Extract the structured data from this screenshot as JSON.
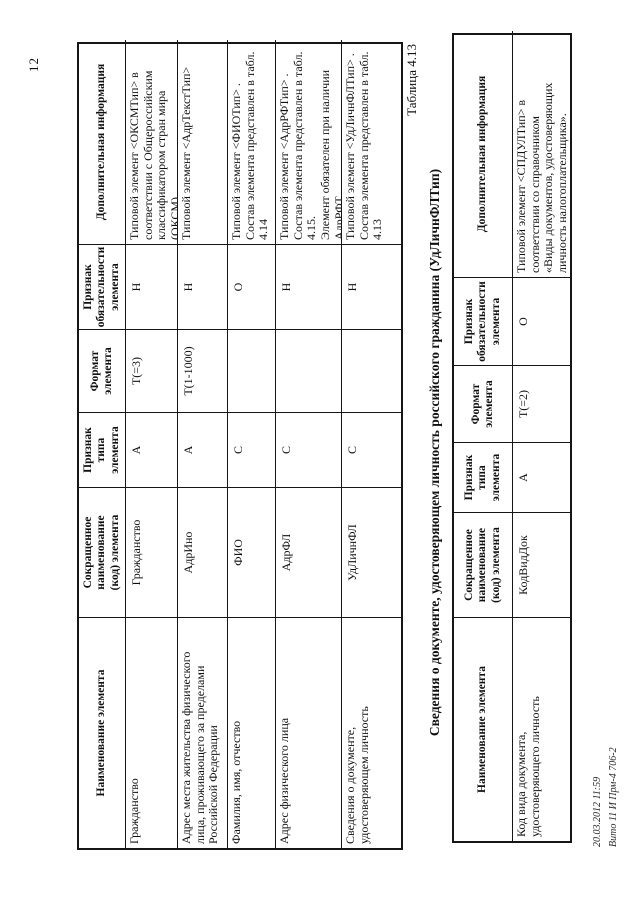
{
  "page": {
    "number": "12",
    "caption": "Таблица 4.13",
    "table2_title": "Сведения о документе, удостоверяющем личность российского гражданина (УдЛичнФЛТип)",
    "footer": {
      "line1": "20.03.2012 11:59",
      "line2": "Вито 11 И Прм-4 706-2"
    }
  },
  "columns": {
    "c0": "Наименование элемента",
    "c1": "Сокращенное\nнаименование\n(код) элемента",
    "c2": "Признак\nтипа\nэлемента",
    "c3": "Формат\nэлемента",
    "c4": "Признак\nобязательности\nэлемента",
    "c5": "Дополнительная информация"
  },
  "table1": {
    "rows": [
      {
        "name": "Гражданство",
        "code": "Гражданство",
        "type": "А",
        "format": "Т(=3)",
        "required": "Н",
        "info": "Типовой элемент <ОКСМТип> в\nсоответствии с Общероссийским\nклассификатором стран мира\n(ОКСМ)"
      },
      {
        "name": "Адрес места жительства физического\nлица, проживающего за пределами\nРоссийской Федерации",
        "code": "АдрИно",
        "type": "А",
        "format": "Т(1-1000)",
        "required": "Н",
        "info": "Типовой элемент <АдрТекстТип>"
      },
      {
        "name": "Фамилия, имя, отчество",
        "code": "ФИО",
        "type": "С",
        "format": "",
        "required": "О",
        "info": "Типовой элемент <ФИОТип> .\nСостав элемента представлен в табл.\n4.14"
      },
      {
        "name": "Адрес физического лица",
        "code": "АдрФЛ",
        "type": "С",
        "format": "",
        "required": "Н",
        "info": "Типовой элемент <АдрРФТип> .\nСостав элемента представлен в табл.\n4.15.\nЭлемент обязателен при наличии\nАдрРФТ"
      },
      {
        "name": "Сведения о документе,\nудостоверяющем личность",
        "code": "УдЛичнФЛ",
        "type": "С",
        "format": "",
        "required": "Н",
        "info": "Типовой элемент <УдЛичнФЛТип> .\nСостав элемента представлен в табл.\n4.13"
      }
    ]
  },
  "table2": {
    "rows": [
      {
        "name": "Код вида документа,\nудостоверяющего личность",
        "code": "КодВидДок",
        "type": "А",
        "format": "Т(=2)",
        "required": "О",
        "info": "Типовой элемент <СПДУЛТип> в\nсоответствии со справочником\n«Виды документов, удостоверяющих\nличность налогоплательщика»."
      }
    ]
  }
}
